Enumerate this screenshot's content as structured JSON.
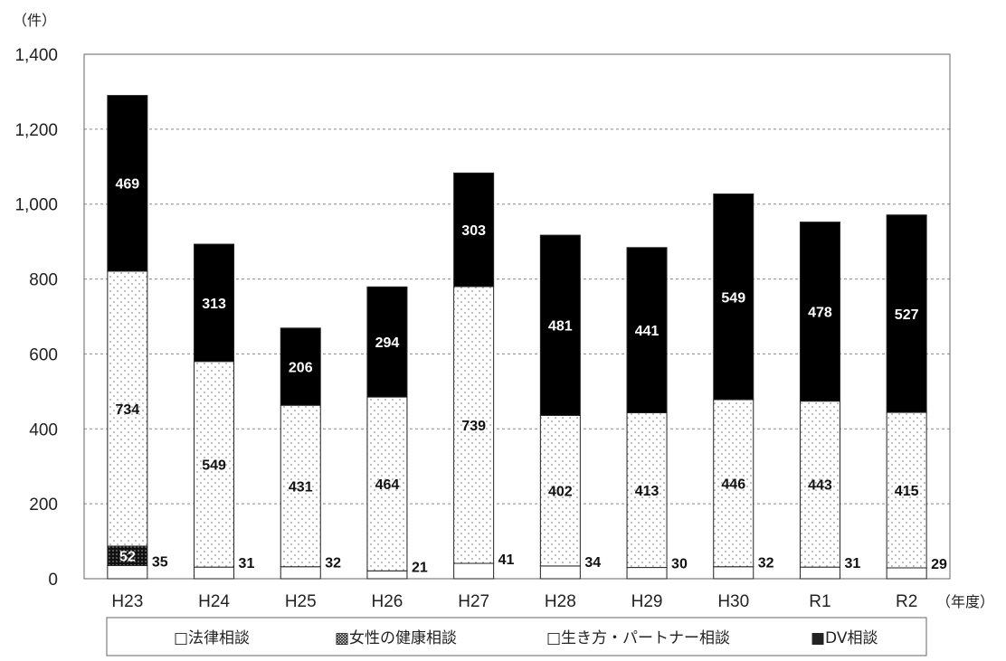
{
  "chart_data": {
    "type": "bar",
    "stacked": true,
    "y_unit_label": "（件）",
    "x_unit_label": "（年度）",
    "categories": [
      "H23",
      "H24",
      "H25",
      "H26",
      "H27",
      "H28",
      "H29",
      "H30",
      "R1",
      "R2"
    ],
    "ylim": [
      0,
      1400
    ],
    "yticks": [
      0,
      200,
      400,
      600,
      800,
      1000,
      1200,
      1400
    ],
    "ytick_labels": [
      "0",
      "200",
      "400",
      "600",
      "800",
      "1,000",
      "1,200",
      "1,400"
    ],
    "grid": true,
    "legend_position": "bottom",
    "series": [
      {
        "name": "法律相談",
        "legend_label": "□法律相談",
        "values": [
          35,
          31,
          32,
          21,
          41,
          34,
          30,
          32,
          31,
          29
        ],
        "pattern": "white",
        "label_position": "outside-right"
      },
      {
        "name": "女性の健康相談",
        "legend_label": "▩女性の健康相談",
        "values": [
          52,
          0,
          0,
          0,
          0,
          0,
          0,
          0,
          0,
          0
        ],
        "pattern": "dark-dotted",
        "label_position": "inside"
      },
      {
        "name": "生き方・パートナー相談",
        "legend_label": "□生き方・パートナー相談",
        "values": [
          734,
          549,
          431,
          464,
          739,
          402,
          413,
          446,
          443,
          415
        ],
        "pattern": "light-dotted",
        "label_position": "inside"
      },
      {
        "name": "DV相談",
        "legend_label": "■DV相談",
        "values": [
          469,
          313,
          206,
          294,
          303,
          481,
          441,
          549,
          478,
          527
        ],
        "pattern": "black",
        "label_position": "inside"
      }
    ]
  }
}
